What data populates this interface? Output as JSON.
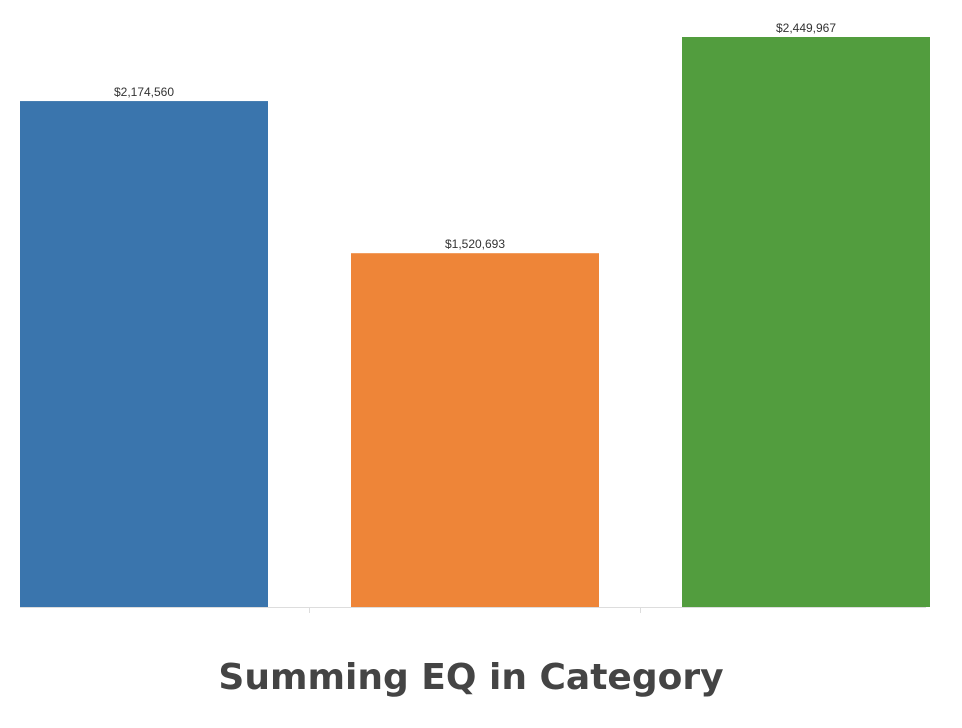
{
  "chart_data": {
    "type": "bar",
    "title": "Summing EQ in Category",
    "categories": [
      null,
      null,
      null
    ],
    "values": [
      2174560,
      1520693,
      2449967
    ],
    "value_labels": [
      "$2,174,560",
      "$1,520,693",
      "$2,449,967"
    ],
    "colors": [
      "#3a75ad",
      "#ee8538",
      "#529d3e"
    ]
  }
}
